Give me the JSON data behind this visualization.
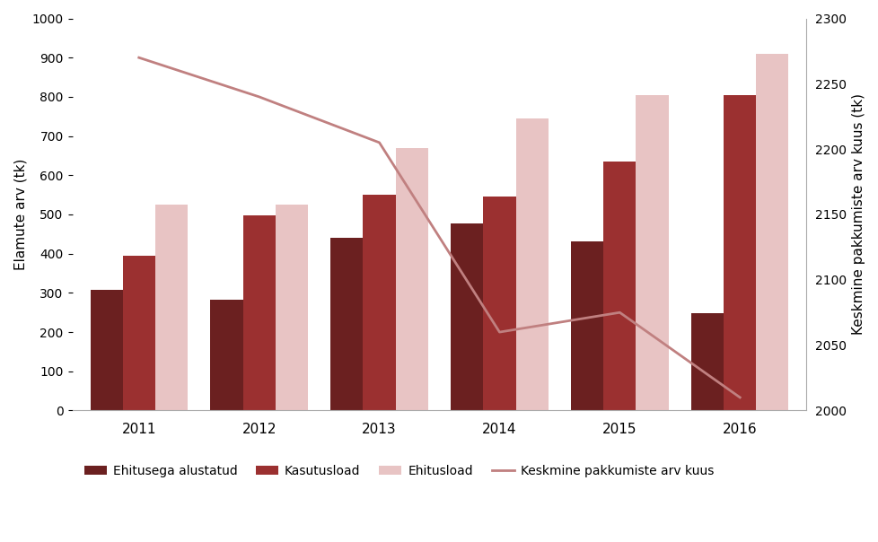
{
  "years": [
    2011,
    2012,
    2013,
    2014,
    2015,
    2016
  ],
  "ehitusega_alustatud": [
    308,
    282,
    440,
    478,
    432,
    248
  ],
  "kasutusload": [
    395,
    497,
    550,
    545,
    635,
    805
  ],
  "ehitusload": [
    525,
    525,
    670,
    745,
    805,
    910
  ],
  "keskmine_pakkumiste": [
    2270,
    2240,
    2205,
    2060,
    2075,
    2010
  ],
  "bar_color_ehitusega": "#6B2020",
  "bar_color_kasutus": "#9B3030",
  "bar_color_ehitusload": "#E8C4C4",
  "line_color": "#C08080",
  "ylabel_left": "Elamute arv (tk)",
  "ylabel_right": "Keskmine pakkumiste arv kuus (tk)",
  "ylim_left": [
    0,
    1000
  ],
  "ylim_right": [
    2000,
    2300
  ],
  "legend_labels": [
    "Ehitusega alustatud",
    "Kasutusload",
    "Ehitusload",
    "Keskmine pakkumiste arv kuus"
  ],
  "bar_width": 0.27,
  "background_color": "#FFFFFF",
  "grid_color": "#FFFFFF",
  "spine_color": "#AAAAAA"
}
